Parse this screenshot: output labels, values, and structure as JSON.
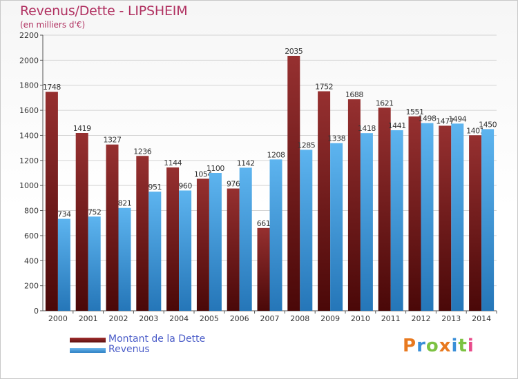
{
  "title": "Revenus/Dette - LIPSHEIM",
  "subtitle": "(en milliers d'€)",
  "logo_text": "Proxiti",
  "colors": {
    "title": "#b03060",
    "dette": "#8b2323",
    "revenus": "#4aa3e6",
    "grid": "#d4d4d4",
    "axis": "#555555",
    "legend_text": "#4a5cc8"
  },
  "chart_data": {
    "type": "bar",
    "title": "Revenus/Dette - LIPSHEIM",
    "subtitle": "(en milliers d'€)",
    "xlabel": "",
    "ylabel": "",
    "ylim": [
      0,
      2200
    ],
    "yticks": [
      0,
      200,
      400,
      600,
      800,
      1000,
      1200,
      1400,
      1600,
      1800,
      2000,
      2200
    ],
    "grid": true,
    "legend_position": "bottom-left",
    "categories": [
      "2000",
      "2001",
      "2002",
      "2003",
      "2004",
      "2005",
      "2006",
      "2007",
      "2008",
      "2009",
      "2010",
      "2011",
      "2012",
      "2013",
      "2014"
    ],
    "series": [
      {
        "name": "Montant de la Dette",
        "color": "#8b2323",
        "values": [
          1748,
          1419,
          1327,
          1236,
          1144,
          1054,
          976,
          661,
          2035,
          1752,
          1688,
          1621,
          1551,
          1477,
          1401
        ],
        "labels": [
          "1748",
          "1419",
          "1327",
          "1236",
          "1144",
          "1054",
          "976",
          "661",
          "2035",
          "1752",
          "1688",
          "1621",
          "1551",
          "1477",
          "1401"
        ]
      },
      {
        "name": "Revenus",
        "color": "#4aa3e6",
        "values": [
          734,
          752,
          821,
          951,
          960,
          1100,
          1142,
          1208,
          1285,
          1338,
          1418,
          1441,
          1498,
          1494,
          1450
        ],
        "labels": [
          "734",
          "752",
          "821",
          "951",
          "960",
          "1100",
          "1142",
          "1208",
          "1285",
          "1338",
          "1418",
          "1441",
          "1498",
          "1494",
          "1450"
        ]
      }
    ]
  },
  "legend": {
    "items": [
      {
        "label": "Montant de la Dette",
        "color": "#8b2323"
      },
      {
        "label": "Revenus",
        "color": "#4aa3e6"
      }
    ]
  }
}
